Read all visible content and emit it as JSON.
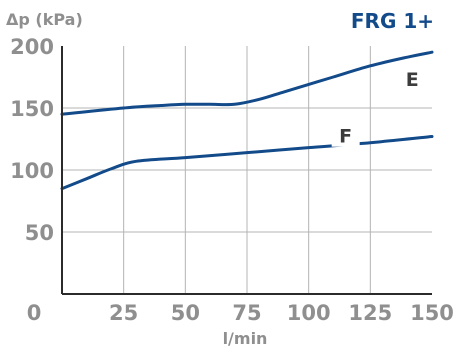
{
  "chart_data": {
    "type": "line",
    "title": "FRG 1+",
    "ylabel": "Δp (kPa)",
    "xlabel": "l/min",
    "xlim": [
      0,
      150
    ],
    "ylim": [
      0,
      200
    ],
    "x_ticks": [
      0,
      25,
      50,
      75,
      100,
      125,
      150
    ],
    "y_ticks": [
      50,
      100,
      150,
      200
    ],
    "x_tick_labels": [
      "0",
      "25",
      "50",
      "75",
      "100",
      "125",
      "150"
    ],
    "y_tick_labels": [
      "50",
      "100",
      "150",
      "200"
    ],
    "grid": true,
    "series": [
      {
        "name": "E",
        "x": [
          0,
          25,
          40,
          50,
          60,
          70,
          80,
          90,
          100,
          110,
          125,
          140,
          150
        ],
        "y": [
          145,
          150,
          152,
          153,
          153,
          153,
          157,
          163,
          169,
          175,
          184,
          191,
          195
        ]
      },
      {
        "name": "F",
        "x": [
          0,
          10,
          20,
          30,
          50,
          75,
          100,
          125,
          150
        ],
        "y": [
          85,
          93,
          101,
          107,
          110,
          114,
          118,
          122,
          127
        ]
      }
    ],
    "colors": {
      "line": "#124a8a",
      "title": "#124a8a",
      "text": "#8f8f8f",
      "label": "#3c3c3c",
      "grid": "#b4b4b4",
      "axis": "#2b2b2b"
    }
  }
}
